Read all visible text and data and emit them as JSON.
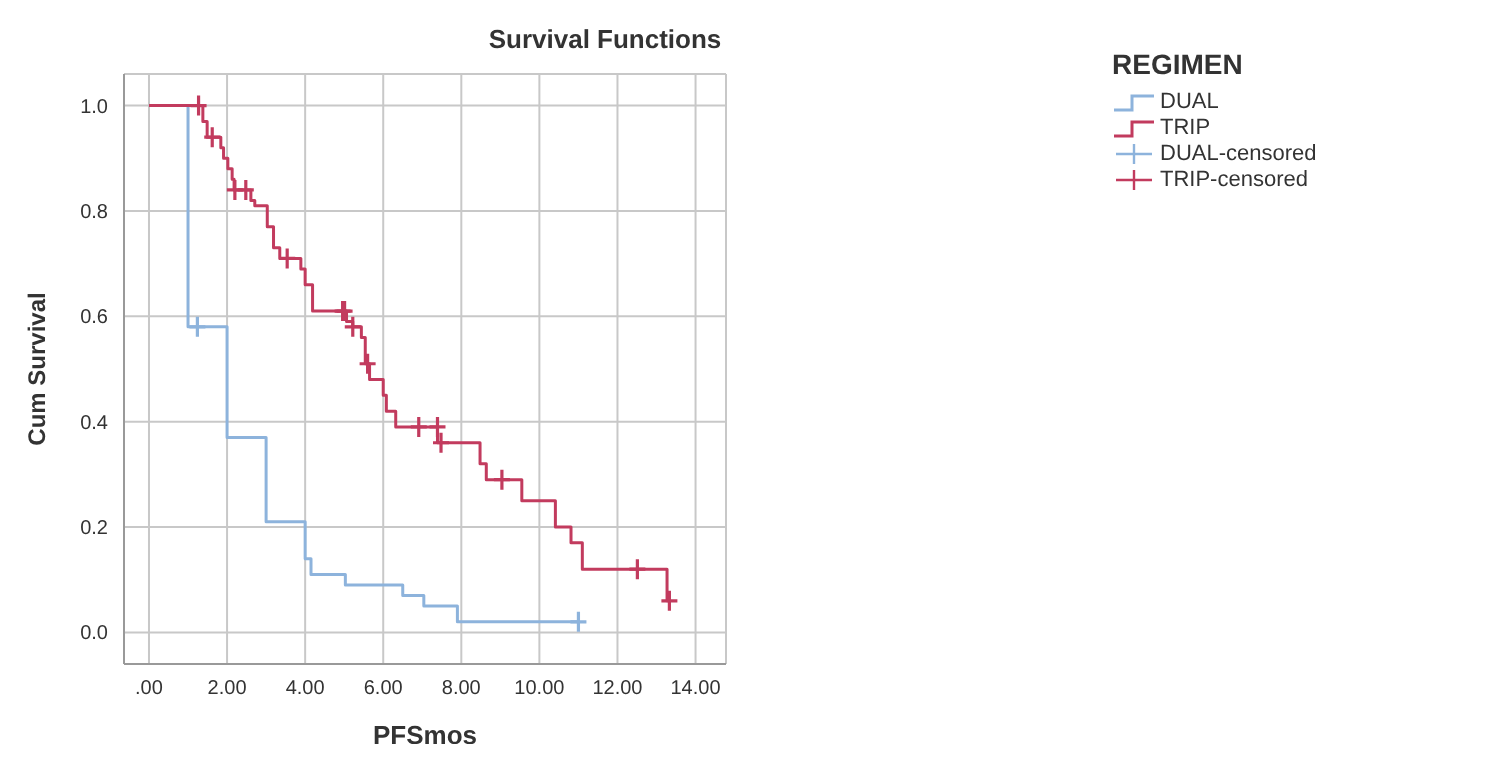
{
  "chart_data": {
    "type": "step",
    "title": "Survival Functions",
    "xlabel": "PFSmos",
    "ylabel": "Cum Survival",
    "legend_title": "REGIMEN",
    "legend": "right",
    "grid": true,
    "xlim": [
      -0.64,
      14.78
    ],
    "ylim": [
      -0.06,
      1.06
    ],
    "xticks": [
      {
        "value": 0,
        "label": ".00"
      },
      {
        "value": 2,
        "label": "2.00"
      },
      {
        "value": 4,
        "label": "4.00"
      },
      {
        "value": 6,
        "label": "6.00"
      },
      {
        "value": 8,
        "label": "8.00"
      },
      {
        "value": 10,
        "label": "10.00"
      },
      {
        "value": 12,
        "label": "12.00"
      },
      {
        "value": 14,
        "label": "14.00"
      }
    ],
    "yticks": [
      {
        "value": 0,
        "label": "0.0"
      },
      {
        "value": 0.2,
        "label": "0.2"
      },
      {
        "value": 0.4,
        "label": "0.4"
      },
      {
        "value": 0.6,
        "label": "0.6"
      },
      {
        "value": 0.8,
        "label": "0.8"
      },
      {
        "value": 1,
        "label": "1.0"
      }
    ],
    "series": [
      {
        "name": "DUAL",
        "color": "#8db3dc",
        "marker": "none",
        "x": [
          0,
          1.0,
          2.0,
          3.0,
          4.0,
          4.15,
          5.03,
          6.5,
          7.04,
          7.9,
          11.0
        ],
        "values": [
          1.0,
          0.58,
          0.37,
          0.21,
          0.14,
          0.11,
          0.09,
          0.07,
          0.05,
          0.02,
          0.02
        ]
      },
      {
        "name": "TRIP",
        "color": "#c23b5e",
        "marker": "none",
        "x": [
          0,
          1.27,
          1.38,
          1.49,
          1.84,
          1.91,
          2.02,
          2.13,
          2.18,
          2.61,
          2.71,
          3.03,
          3.19,
          3.35,
          3.89,
          4.0,
          4.19,
          5.06,
          5.22,
          5.44,
          5.54,
          5.65,
          6.0,
          6.08,
          6.32,
          7.39,
          8.48,
          8.64,
          9.55,
          10.41,
          10.81,
          11.1,
          13.27,
          13.33
        ],
        "values": [
          1.0,
          1.0,
          0.97,
          0.94,
          0.92,
          0.9,
          0.88,
          0.86,
          0.84,
          0.82,
          0.81,
          0.77,
          0.73,
          0.71,
          0.69,
          0.66,
          0.61,
          0.59,
          0.58,
          0.56,
          0.51,
          0.48,
          0.45,
          0.42,
          0.39,
          0.36,
          0.32,
          0.29,
          0.25,
          0.2,
          0.17,
          0.12,
          0.06,
          0.06
        ]
      },
      {
        "name": "DUAL-censored",
        "type": "scatter",
        "color": "#8db3dc",
        "marker": "cross",
        "x": [
          1.24,
          11.0
        ],
        "values": [
          0.58,
          0.02
        ]
      },
      {
        "name": "TRIP-censored",
        "type": "scatter",
        "color": "#c23b5e",
        "marker": "cross",
        "x": [
          1.27,
          1.62,
          2.2,
          2.48,
          3.54,
          4.96,
          5.01,
          5.22,
          5.6,
          6.91,
          7.39,
          7.48,
          9.04,
          12.51,
          13.33
        ],
        "values": [
          1.0,
          0.94,
          0.84,
          0.84,
          0.71,
          0.61,
          0.61,
          0.58,
          0.51,
          0.39,
          0.39,
          0.36,
          0.29,
          0.12,
          0.06
        ]
      }
    ]
  }
}
